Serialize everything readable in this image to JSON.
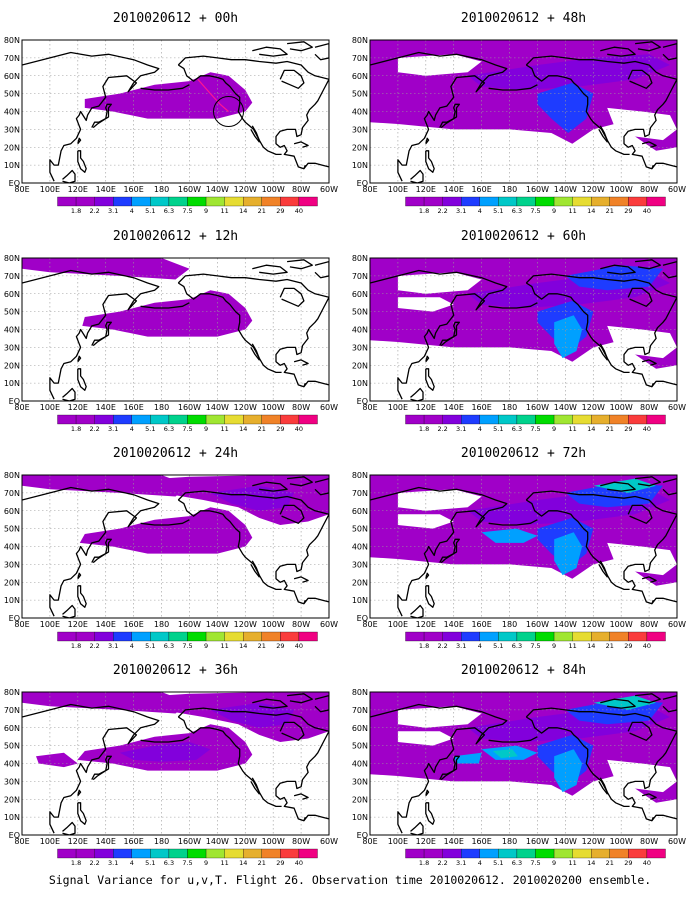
{
  "caption": "Signal Variance for u,v,T. Flight 26. Observation time 2010020612. 2010020200 ensemble.",
  "lon_labels": [
    "80E",
    "100E",
    "120E",
    "140E",
    "160E",
    "180",
    "160W",
    "140W",
    "120W",
    "100W",
    "80W",
    "60W"
  ],
  "lat_labels": [
    "80N",
    "70N",
    "60N",
    "50N",
    "40N",
    "30N",
    "20N",
    "10N",
    "EQ"
  ],
  "colorbar": {
    "labels": [
      "1.8",
      "2.2",
      "3.1",
      "4",
      "5.1",
      "6.3",
      "7.5",
      "9",
      "11",
      "14",
      "21",
      "29",
      "40"
    ],
    "colors": [
      "#a000c8",
      "#8200dc",
      "#1e3cff",
      "#00a0ff",
      "#00c8c8",
      "#00d28c",
      "#00dc00",
      "#a0e632",
      "#e6dc32",
      "#e6af2d",
      "#f08228",
      "#fa3c3c",
      "#f00082"
    ]
  },
  "colors": {
    "shade_light": "#a000c8",
    "shade_mid": "#8200dc",
    "shade_blue": "#1e3cff",
    "shade_cyan": "#00a0ff",
    "shade_teal": "#00c8c8",
    "coast": "#000000",
    "grid": "#9a9a9a",
    "flight_track": "#ff1493"
  },
  "panels": [
    {
      "id": "p00",
      "title": "2010020612 + 00h",
      "col": 0,
      "row": 0,
      "level": 0
    },
    {
      "id": "p48",
      "title": "2010020612 + 48h",
      "col": 1,
      "row": 0,
      "level": 4
    },
    {
      "id": "p12",
      "title": "2010020612 + 12h",
      "col": 0,
      "row": 1,
      "level": 1
    },
    {
      "id": "p60",
      "title": "2010020612 + 60h",
      "col": 1,
      "row": 1,
      "level": 5
    },
    {
      "id": "p24",
      "title": "2010020612 + 24h",
      "col": 0,
      "row": 2,
      "level": 2
    },
    {
      "id": "p72",
      "title": "2010020612 + 72h",
      "col": 1,
      "row": 2,
      "level": 6
    },
    {
      "id": "p36",
      "title": "2010020612 + 36h",
      "col": 0,
      "row": 3,
      "level": 3
    },
    {
      "id": "p84",
      "title": "2010020612 + 84h",
      "col": 1,
      "row": 3,
      "level": 7
    }
  ]
}
